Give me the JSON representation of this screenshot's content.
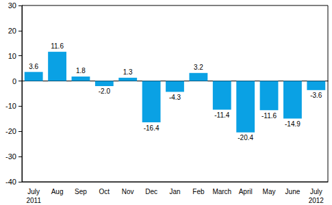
{
  "chart_data": {
    "type": "bar",
    "categories": [
      "July\n2011",
      "Aug",
      "Sep",
      "Oct",
      "Nov",
      "Dec",
      "Jan",
      "Feb",
      "March",
      "April",
      "May",
      "June",
      "July\n2012"
    ],
    "values": [
      3.6,
      11.6,
      1.8,
      -2.0,
      1.3,
      -16.4,
      -4.3,
      3.2,
      -11.4,
      -20.4,
      -11.6,
      -14.9,
      -3.6
    ],
    "value_labels": [
      "3.6",
      "11.6",
      "1.8",
      "-2.0",
      "1.3",
      "-16.4",
      "-4.3",
      "3.2",
      "-11.4",
      "-20.4",
      "-11.6",
      "-14.9",
      "-3.6"
    ],
    "color": "#0aa1e4",
    "ylim": [
      -40,
      30
    ],
    "yticks": [
      -40,
      -30,
      -20,
      -10,
      0,
      10,
      20,
      30
    ],
    "grid": false,
    "data_labels": true
  }
}
